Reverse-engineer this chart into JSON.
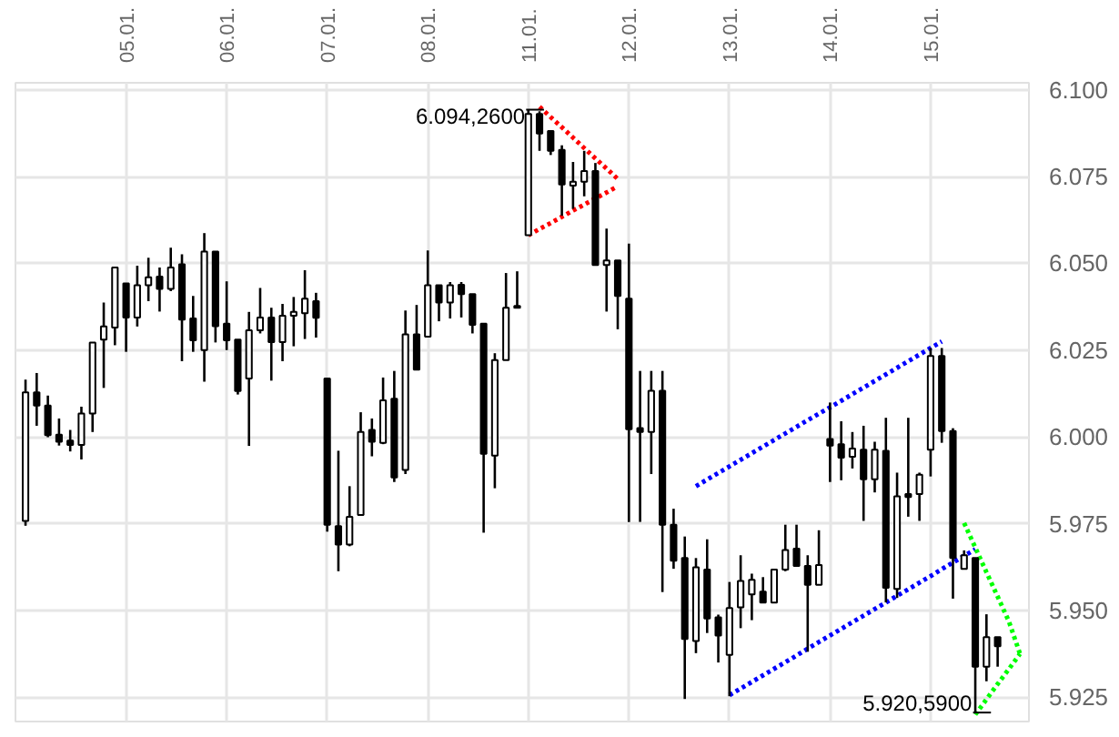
{
  "chart_data": {
    "type": "candlestick",
    "color": "#000000",
    "categories": [
      null,
      null,
      null,
      null,
      null,
      null,
      null,
      null,
      null,
      "05.01.",
      null,
      null,
      null,
      null,
      null,
      null,
      null,
      null,
      "06.01.",
      null,
      null,
      null,
      null,
      null,
      null,
      null,
      null,
      "07.01.",
      null,
      null,
      null,
      null,
      null,
      null,
      null,
      null,
      "08.01.",
      null,
      null,
      null,
      null,
      null,
      null,
      null,
      null,
      "11.01.",
      null,
      null,
      null,
      null,
      null,
      null,
      null,
      null,
      "12.01.",
      null,
      null,
      null,
      null,
      null,
      null,
      null,
      null,
      "13.01.",
      null,
      null,
      null,
      null,
      null,
      null,
      null,
      null,
      "14.01.",
      null,
      null,
      null,
      null,
      null,
      null,
      null,
      null,
      "15.01.",
      null,
      null,
      null,
      null,
      null,
      null,
      null,
      null
    ],
    "ohlc": [
      [
        5975.8,
        6016.5,
        5974.4,
        6012.8
      ],
      [
        6012.8,
        6018.4,
        6003.2,
        6009.0
      ],
      [
        6009.0,
        6011.9,
        5999.9,
        6000.5
      ],
      [
        6000.6,
        6005.3,
        5997.5,
        5998.6
      ],
      [
        5998.9,
        6002.0,
        5995.8,
        5997.7
      ],
      [
        5997.7,
        6008.7,
        5993.5,
        6006.7
      ],
      [
        6006.7,
        6027.2,
        6001.4,
        6027.2
      ],
      [
        6028.0,
        6038.7,
        6014.1,
        6031.8
      ],
      [
        6031.5,
        6048.8,
        6026.4,
        6048.8
      ],
      [
        6044.2,
        6044.3,
        6024.5,
        6034.4
      ],
      [
        6034.4,
        6049.3,
        6031.8,
        6043.7
      ],
      [
        6043.7,
        6051.6,
        6039.1,
        6046.0
      ],
      [
        6046.2,
        6048.8,
        6036.1,
        6042.6
      ],
      [
        6042.6,
        6054.5,
        6042.0,
        6048.8
      ],
      [
        6049.7,
        6052.6,
        6021.8,
        6033.8
      ],
      [
        6034.1,
        6040.6,
        6024.5,
        6027.8
      ],
      [
        6025.0,
        6058.7,
        6015.9,
        6053.4
      ],
      [
        6053.4,
        6053.4,
        6027.2,
        6031.9
      ],
      [
        6032.6,
        6044.8,
        6025.0,
        6027.8
      ],
      [
        6028.0,
        6028.0,
        6012.2,
        6013.2
      ],
      [
        6016.8,
        6036.0,
        5997.4,
        6030.7
      ],
      [
        6030.7,
        6042.9,
        6029.8,
        6034.4
      ],
      [
        6034.4,
        6037.2,
        6016.2,
        6027.3
      ],
      [
        6027.3,
        6038.3,
        6021.8,
        6034.9
      ],
      [
        6034.9,
        6040.3,
        6026.1,
        6036.0
      ],
      [
        6035.6,
        6048.0,
        6028.2,
        6039.8
      ],
      [
        6039.1,
        6041.5,
        6028.6,
        6034.3
      ],
      [
        6016.8,
        6017.0,
        5972.7,
        5974.7
      ],
      [
        5974.3,
        5996.0,
        5961.3,
        5969.0
      ],
      [
        5969.0,
        5985.8,
        5968.5,
        5977.0
      ],
      [
        5977.5,
        6007.1,
        5977.5,
        6001.4
      ],
      [
        6002.0,
        6005.3,
        5994.4,
        5998.6
      ],
      [
        5998.3,
        6017.1,
        5997.9,
        6010.5
      ],
      [
        6011.0,
        6019.0,
        5987.0,
        5988.3
      ],
      [
        5990.5,
        6036.4,
        5989.3,
        6029.5
      ],
      [
        6029.5,
        6038.0,
        6019.4,
        6019.4
      ],
      [
        6028.9,
        6053.7,
        6028.9,
        6043.7
      ],
      [
        6043.7,
        6043.7,
        6033.3,
        6038.7
      ],
      [
        6038.7,
        6044.6,
        6034.1,
        6043.7
      ],
      [
        6043.8,
        6044.6,
        6034.4,
        6041.1
      ],
      [
        6041.1,
        6041.1,
        6029.8,
        6032.3
      ],
      [
        6032.6,
        6032.6,
        5972.4,
        5995.1
      ],
      [
        5994.6,
        6024.1,
        5985.2,
        6022.1
      ],
      [
        6022.1,
        6047.2,
        6022.1,
        6037.2
      ],
      [
        6037.7,
        6047.7,
        6037.2,
        6037.2
      ],
      [
        6058.1,
        6094.26,
        6058.1,
        6093.0
      ],
      [
        6093.0,
        6093.8,
        6082.4,
        6087.4
      ],
      [
        6088.1,
        6088.1,
        6081.2,
        6082.4
      ],
      [
        6082.7,
        6084.0,
        6063.7,
        6072.7
      ],
      [
        6072.4,
        6079.2,
        6065.7,
        6073.5
      ],
      [
        6073.5,
        6082.4,
        6069.3,
        6076.6
      ],
      [
        6076.6,
        6078.9,
        6049.5,
        6049.5
      ],
      [
        6049.5,
        6060.0,
        6036.1,
        6050.8
      ],
      [
        6050.8,
        6050.8,
        6031.0,
        6040.6
      ],
      [
        6039.8,
        6055.7,
        5975.5,
        6002.2
      ],
      [
        6002.5,
        6019.0,
        5975.5,
        6001.4
      ],
      [
        6001.4,
        6019.0,
        5989.3,
        6013.3
      ],
      [
        6013.3,
        6019.0,
        5955.3,
        5974.7
      ],
      [
        5974.7,
        5979.3,
        5962.0,
        5964.3
      ],
      [
        5965.1,
        5971.3,
        5924.5,
        5941.8
      ],
      [
        5941.2,
        5965.1,
        5937.7,
        5962.4
      ],
      [
        5961.8,
        5970.5,
        5943.5,
        5947.7
      ],
      [
        5948.0,
        5948.8,
        5935.0,
        5942.8
      ],
      [
        5937.2,
        5958.2,
        5925.3,
        5950.7
      ],
      [
        5950.9,
        5965.9,
        5944.9,
        5958.5
      ],
      [
        5954.6,
        5960.6,
        5947.2,
        5958.8
      ],
      [
        5955.4,
        5959.6,
        5952.2,
        5952.3
      ],
      [
        5952.3,
        5961.8,
        5952.3,
        5961.8
      ],
      [
        5961.8,
        5974.7,
        5961.3,
        5967.4
      ],
      [
        5967.8,
        5974.7,
        5962.8,
        5962.8
      ],
      [
        5962.8,
        5965.9,
        5938.1,
        5957.4
      ],
      [
        5957.4,
        5973.1,
        5957.4,
        5963.1
      ],
      [
        5999.4,
        6009.9,
        5987.0,
        5997.5
      ],
      [
        5997.9,
        6004.5,
        5987.5,
        5994.0
      ],
      [
        5994.3,
        6001.4,
        5990.9,
        5996.6
      ],
      [
        5996.3,
        6003.2,
        5975.8,
        5987.8
      ],
      [
        5987.8,
        5998.6,
        5984.0,
        5996.3
      ],
      [
        5996.0,
        6005.5,
        5952.3,
        5956.5
      ],
      [
        5956.2,
        5989.7,
        5953.6,
        5982.9
      ],
      [
        5983.5,
        6005.5,
        5977.0,
        5982.7
      ],
      [
        5983.5,
        5989.7,
        5975.8,
        5989.1
      ],
      [
        5996.3,
        6025.6,
        5988.6,
        6023.3
      ],
      [
        6023.3,
        6025.6,
        5998.3,
        6001.7
      ],
      [
        6001.7,
        6002.5,
        5953.4,
        5965.1
      ],
      [
        5962.0,
        5967.3,
        5962.0,
        5965.9
      ],
      [
        5965.1,
        5965.1,
        5920.59,
        5933.8
      ],
      [
        5933.8,
        5948.9,
        5929.6,
        5942.3
      ],
      [
        5942.3,
        5942.3,
        5933.8,
        5939.7
      ],
      null,
      null
    ],
    "series": [
      {
        "type": "line",
        "color": "#ff0000",
        "line_style": "dotted",
        "values": [
          null,
          null,
          null,
          null,
          null,
          null,
          null,
          null,
          null,
          null,
          null,
          null,
          null,
          null,
          null,
          null,
          null,
          null,
          null,
          null,
          null,
          null,
          null,
          null,
          null,
          null,
          null,
          null,
          null,
          null,
          null,
          null,
          null,
          null,
          null,
          null,
          null,
          null,
          null,
          null,
          null,
          null,
          null,
          null,
          null,
          null,
          6095.1,
          6092.1,
          6089.2,
          6086.2,
          6083.2,
          6080.2,
          6077.3,
          6074.3,
          null,
          null,
          null,
          null,
          null,
          null,
          null,
          null,
          null,
          null,
          null,
          null,
          null,
          null,
          null,
          null,
          null,
          null,
          null,
          null,
          null,
          null,
          null,
          null,
          null,
          null,
          null,
          null,
          null,
          null,
          null,
          null,
          null,
          null,
          null,
          null
        ]
      },
      {
        "type": "line",
        "color": "#ff0000",
        "line_style": "dotted",
        "values": [
          null,
          null,
          null,
          null,
          null,
          null,
          null,
          null,
          null,
          null,
          null,
          null,
          null,
          null,
          null,
          null,
          null,
          null,
          null,
          null,
          null,
          null,
          null,
          null,
          null,
          null,
          null,
          null,
          null,
          null,
          null,
          null,
          null,
          null,
          null,
          null,
          null,
          null,
          null,
          null,
          null,
          null,
          null,
          null,
          null,
          6058.1,
          6059.9,
          6061.6,
          6063.4,
          6065.2,
          6066.9,
          6068.7,
          6070.4,
          6072.2,
          null,
          null,
          null,
          null,
          null,
          null,
          null,
          null,
          null,
          null,
          null,
          null,
          null,
          null,
          null,
          null,
          null,
          null,
          null,
          null,
          null,
          null,
          null,
          null,
          null,
          null,
          null,
          null,
          null,
          null,
          null,
          null,
          null,
          null,
          null,
          null
        ]
      },
      {
        "type": "line",
        "color": "#0000ff",
        "line_style": "dotted",
        "values": [
          null,
          null,
          null,
          null,
          null,
          null,
          null,
          null,
          null,
          null,
          null,
          null,
          null,
          null,
          null,
          null,
          null,
          null,
          null,
          null,
          null,
          null,
          null,
          null,
          null,
          null,
          null,
          null,
          null,
          null,
          null,
          null,
          null,
          null,
          null,
          null,
          null,
          null,
          null,
          null,
          null,
          null,
          null,
          null,
          null,
          null,
          null,
          null,
          null,
          null,
          null,
          null,
          null,
          null,
          null,
          null,
          null,
          null,
          null,
          null,
          5985.8,
          5987.7,
          5989.6,
          5991.5,
          5993.4,
          5995.3,
          5997.2,
          5999.1,
          6001.0,
          6002.9,
          6004.8,
          6006.7,
          6008.5,
          6010.4,
          6012.3,
          6014.2,
          6016.1,
          6018.0,
          6019.9,
          6021.8,
          6023.7,
          6025.6,
          6027.5,
          null,
          null,
          null,
          null,
          null,
          null,
          null
        ]
      },
      {
        "type": "line",
        "color": "#0000ff",
        "line_style": "dotted",
        "values": [
          null,
          null,
          null,
          null,
          null,
          null,
          null,
          null,
          null,
          null,
          null,
          null,
          null,
          null,
          null,
          null,
          null,
          null,
          null,
          null,
          null,
          null,
          null,
          null,
          null,
          null,
          null,
          null,
          null,
          null,
          null,
          null,
          null,
          null,
          null,
          null,
          null,
          null,
          null,
          null,
          null,
          null,
          null,
          null,
          null,
          null,
          null,
          null,
          null,
          null,
          null,
          null,
          null,
          null,
          null,
          null,
          null,
          null,
          null,
          null,
          null,
          null,
          null,
          5925.6,
          5927.5,
          5929.4,
          5931.3,
          5933.2,
          5935.1,
          5937.0,
          5939.0,
          5940.9,
          5942.8,
          5944.7,
          5946.6,
          5948.5,
          5950.4,
          5952.3,
          5954.2,
          5956.1,
          5958.0,
          5959.9,
          5961.9,
          5963.8,
          5965.7,
          5967.6,
          null,
          null,
          null,
          null
        ]
      },
      {
        "type": "line",
        "color": "#00ff00",
        "line_style": "dotted",
        "values": [
          null,
          null,
          null,
          null,
          null,
          null,
          null,
          null,
          null,
          null,
          null,
          null,
          null,
          null,
          null,
          null,
          null,
          null,
          null,
          null,
          null,
          null,
          null,
          null,
          null,
          null,
          null,
          null,
          null,
          null,
          null,
          null,
          null,
          null,
          null,
          null,
          null,
          null,
          null,
          null,
          null,
          null,
          null,
          null,
          null,
          null,
          null,
          null,
          null,
          null,
          null,
          null,
          null,
          null,
          null,
          null,
          null,
          null,
          null,
          null,
          null,
          null,
          null,
          null,
          null,
          null,
          null,
          null,
          null,
          null,
          null,
          null,
          null,
          null,
          null,
          null,
          null,
          null,
          null,
          null,
          null,
          null,
          null,
          null,
          5975.2,
          5968.1,
          5961.0,
          5954.0,
          5946.9,
          5937.5
        ]
      },
      {
        "type": "line",
        "color": "#00ff00",
        "line_style": "dotted",
        "values": [
          null,
          null,
          null,
          null,
          null,
          null,
          null,
          null,
          null,
          null,
          null,
          null,
          null,
          null,
          null,
          null,
          null,
          null,
          null,
          null,
          null,
          null,
          null,
          null,
          null,
          null,
          null,
          null,
          null,
          null,
          null,
          null,
          null,
          null,
          null,
          null,
          null,
          null,
          null,
          null,
          null,
          null,
          null,
          null,
          null,
          null,
          null,
          null,
          null,
          null,
          null,
          null,
          null,
          null,
          null,
          null,
          null,
          null,
          null,
          null,
          null,
          null,
          null,
          null,
          null,
          null,
          null,
          null,
          null,
          null,
          null,
          null,
          null,
          null,
          null,
          null,
          null,
          null,
          null,
          null,
          null,
          null,
          null,
          null,
          null,
          5920.0,
          5924.4,
          5928.8,
          5933.1,
          5937.5
        ]
      }
    ],
    "annotations": [
      {
        "text": "6.094,2600",
        "x": "11.01.",
        "y": 6094.26
      },
      "5.920,5900"
    ],
    "ylim": [
      5918,
      6102
    ],
    "yticks": [
      {
        "value": 5925,
        "label": "5.925"
      },
      {
        "value": 5950,
        "label": "5.950"
      },
      {
        "value": 5975,
        "label": "5.975"
      },
      {
        "value": 6000,
        "label": "6.000"
      },
      {
        "value": 6025,
        "label": "6.025"
      },
      {
        "value": 6050,
        "label": "6.050"
      },
      {
        "value": 6075,
        "label": "6.075"
      },
      {
        "value": 6100,
        "label": "6.100"
      }
    ],
    "grid": true
  }
}
